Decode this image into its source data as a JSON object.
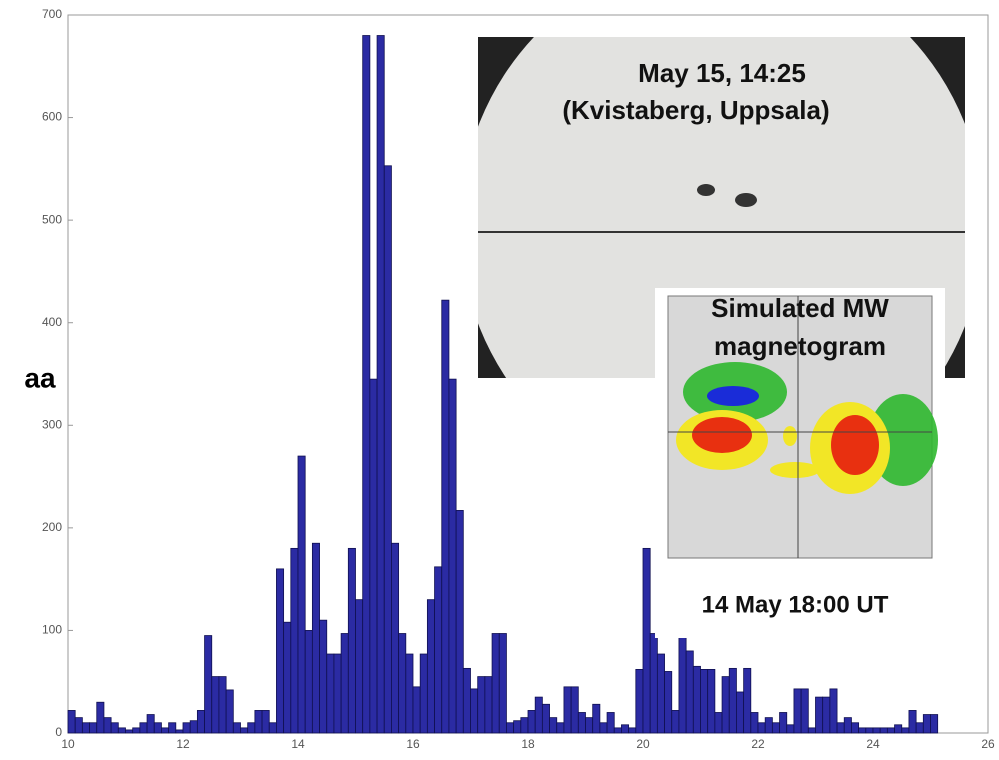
{
  "chart_data": {
    "type": "bar",
    "y_label": "aa",
    "annotations": [
      "May 15, 14:25",
      "(Kvistaberg, Uppsala)",
      "Simulated MW",
      "magnetogram",
      "14 May 18:00 UT"
    ],
    "color": "#2b2ba3",
    "xlim": [
      10,
      26
    ],
    "ylim": [
      0,
      700
    ],
    "xticks": [
      10,
      12,
      14,
      16,
      18,
      20,
      22,
      24,
      26
    ],
    "yticks": [
      0,
      100,
      200,
      300,
      400,
      500,
      600,
      700
    ],
    "x": [
      10,
      10.125,
      10.25,
      10.375,
      10.5,
      10.625,
      10.75,
      10.875,
      11,
      11.125,
      11.25,
      11.375,
      11.5,
      11.625,
      11.75,
      11.875,
      12,
      12.125,
      12.25,
      12.375,
      12.5,
      12.625,
      12.75,
      12.875,
      13,
      13.125,
      13.25,
      13.375,
      13.5,
      13.625,
      13.75,
      13.875,
      14,
      14.125,
      14.25,
      14.375,
      14.5,
      14.625,
      14.75,
      14.875,
      15,
      15.125,
      15.25,
      15.375,
      15.5,
      15.625,
      15.75,
      15.875,
      16,
      16.125,
      16.25,
      16.375,
      16.5,
      16.625,
      16.75,
      16.875,
      17,
      17.125,
      17.25,
      17.375,
      17.5,
      17.625,
      17.75,
      17.875,
      18,
      18.125,
      18.25,
      18.375,
      18.5,
      18.625,
      18.75,
      18.875,
      19,
      19.125,
      19.25,
      19.375,
      19.5,
      19.625,
      19.75,
      19.875,
      20,
      20.125,
      20.25,
      20.375,
      20.5,
      20.625,
      20.75,
      20.875,
      21,
      21.125,
      21.25,
      21.375,
      21.5,
      21.625,
      21.75,
      21.875,
      22,
      22.125,
      22.25,
      22.375,
      22.5,
      22.625,
      22.75,
      22.875,
      23,
      23.125,
      23.25,
      23.375,
      23.5,
      23.625,
      23.75,
      23.875,
      24,
      24.125,
      24.25,
      24.375,
      24.5,
      24.625,
      24.75,
      24.875,
      25
    ],
    "values": [
      22,
      15,
      10,
      10,
      30,
      15,
      10,
      5,
      3,
      5,
      10,
      18,
      10,
      5,
      10,
      3,
      10,
      12,
      22,
      95,
      55,
      55,
      42,
      10,
      5,
      10,
      22,
      22,
      10,
      160,
      108,
      180,
      270,
      100,
      185,
      110,
      77,
      77,
      97,
      180,
      130,
      680,
      345,
      680,
      553,
      185,
      97,
      77,
      45,
      77,
      130,
      162,
      422,
      345,
      217,
      63,
      43,
      55,
      55,
      97,
      97,
      10,
      12,
      15,
      22,
      35,
      28,
      15,
      10,
      45,
      45,
      20,
      15,
      28,
      10,
      20,
      5,
      8,
      5,
      62,
      180,
      97,
      77,
      60,
      22,
      95,
      80,
      65,
      62,
      62,
      20,
      55,
      63,
      40,
      63,
      20,
      10,
      15,
      10,
      20,
      8,
      43,
      43,
      5,
      35,
      35,
      43,
      10,
      15,
      10,
      5,
      5,
      5,
      5,
      5,
      8,
      5,
      22,
      10,
      18,
      18
    ]
  }
}
